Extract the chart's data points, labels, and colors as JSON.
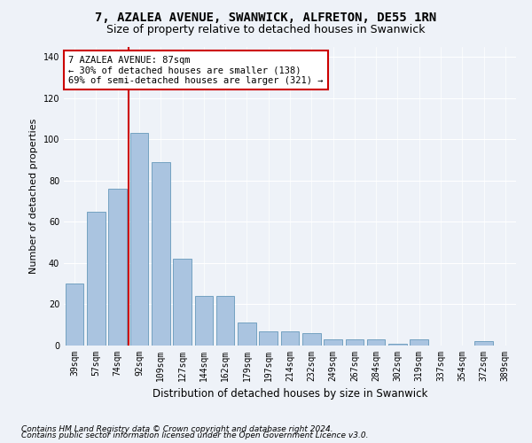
{
  "title1": "7, AZALEA AVENUE, SWANWICK, ALFRETON, DE55 1RN",
  "title2": "Size of property relative to detached houses in Swanwick",
  "xlabel": "Distribution of detached houses by size in Swanwick",
  "ylabel": "Number of detached properties",
  "categories": [
    "39sqm",
    "57sqm",
    "74sqm",
    "92sqm",
    "109sqm",
    "127sqm",
    "144sqm",
    "162sqm",
    "179sqm",
    "197sqm",
    "214sqm",
    "232sqm",
    "249sqm",
    "267sqm",
    "284sqm",
    "302sqm",
    "319sqm",
    "337sqm",
    "354sqm",
    "372sqm",
    "389sqm"
  ],
  "values": [
    30,
    65,
    76,
    103,
    89,
    42,
    24,
    24,
    11,
    7,
    7,
    6,
    3,
    3,
    3,
    1,
    3,
    0,
    0,
    2,
    0
  ],
  "bar_color": "#aac4e0",
  "bar_edge_color": "#6699bb",
  "vline_color": "#cc0000",
  "vline_x_index": 2.5,
  "annotation_text": "7 AZALEA AVENUE: 87sqm\n← 30% of detached houses are smaller (138)\n69% of semi-detached houses are larger (321) →",
  "annotation_box_color": "#ffffff",
  "annotation_box_edge": "#cc0000",
  "ylim": [
    0,
    145
  ],
  "yticks": [
    0,
    20,
    40,
    60,
    80,
    100,
    120,
    140
  ],
  "footer1": "Contains HM Land Registry data © Crown copyright and database right 2024.",
  "footer2": "Contains public sector information licensed under the Open Government Licence v3.0.",
  "bg_color": "#eef2f8",
  "plot_bg_color": "#eef2f8",
  "title1_fontsize": 10,
  "title2_fontsize": 9,
  "xlabel_fontsize": 8.5,
  "ylabel_fontsize": 8,
  "tick_fontsize": 7,
  "footer_fontsize": 6.5,
  "annotation_fontsize": 7.5
}
